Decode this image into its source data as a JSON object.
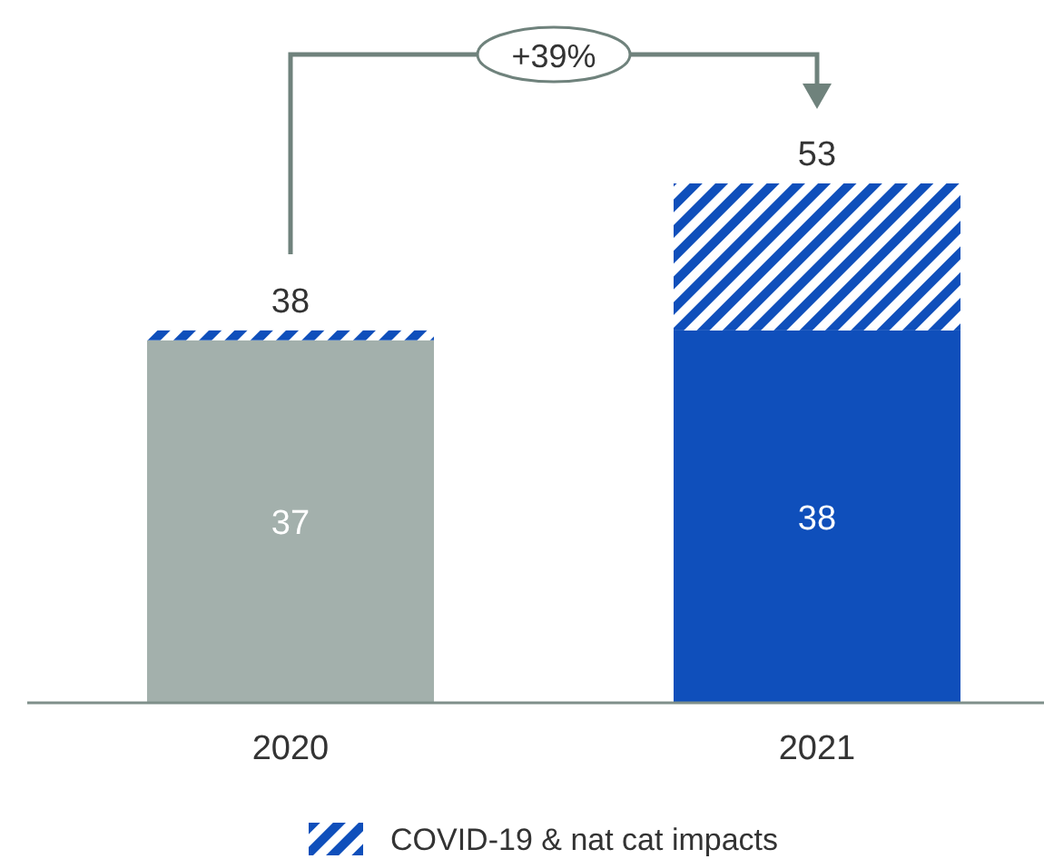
{
  "chart_data": {
    "type": "bar",
    "stacked": true,
    "categories": [
      "2020",
      "2021"
    ],
    "series": [
      {
        "colors": [
          "#a3b0ac",
          "#0f4fbb"
        ],
        "values": [
          37,
          38
        ],
        "value_labels": [
          "37",
          "38"
        ]
      },
      {
        "name": "COVID-19 & nat cat impacts",
        "color": "#0f4fbb",
        "values": [
          1,
          15
        ]
      }
    ],
    "totals": [
      "38",
      "53"
    ],
    "annotations": [
      "+39%"
    ],
    "legend": "bottom"
  }
}
